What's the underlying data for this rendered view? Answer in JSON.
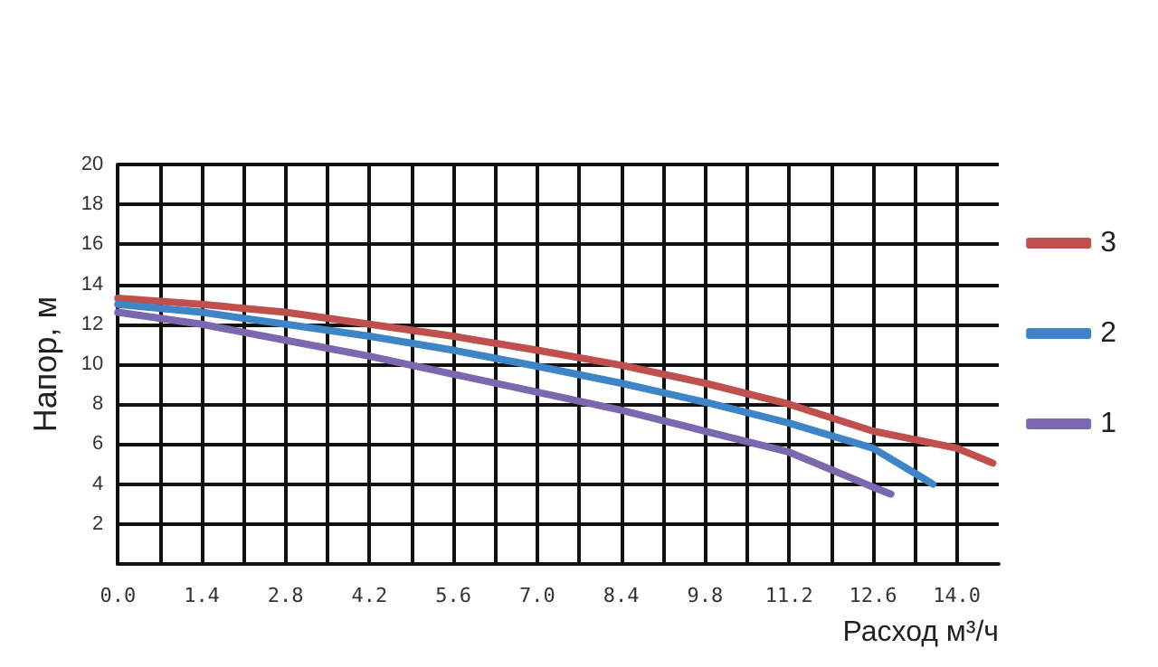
{
  "chart_data": {
    "type": "line",
    "xlabel": "Расход м³/ч",
    "ylabel": "Напор, м",
    "xlim": [
      0,
      14.7
    ],
    "xticks": [
      {
        "value": 0,
        "label": "0.0"
      },
      {
        "value": 0.7,
        "label": null
      },
      {
        "value": 1.4,
        "label": "1.4"
      },
      {
        "value": 2.1,
        "label": null
      },
      {
        "value": 2.8,
        "label": "2.8"
      },
      {
        "value": 3.5,
        "label": null
      },
      {
        "value": 4.2,
        "label": "4.2"
      },
      {
        "value": 4.9,
        "label": null
      },
      {
        "value": 5.6,
        "label": "5.6"
      },
      {
        "value": 6.3,
        "label": null
      },
      {
        "value": 7,
        "label": "7.0"
      },
      {
        "value": 7.7,
        "label": null
      },
      {
        "value": 8.4,
        "label": "8.4"
      },
      {
        "value": 9.1,
        "label": null
      },
      {
        "value": 9.8,
        "label": "9.8"
      },
      {
        "value": 10.5,
        "label": null
      },
      {
        "value": 11.2,
        "label": "11.2"
      },
      {
        "value": 11.9,
        "label": null
      },
      {
        "value": 12.6,
        "label": "12.6"
      },
      {
        "value": 13.3,
        "label": null
      },
      {
        "value": 14,
        "label": "14.0"
      }
    ],
    "ylim": [
      0,
      20
    ],
    "yticks": [
      2,
      4,
      6,
      8,
      10,
      12,
      14,
      16,
      18,
      20
    ],
    "grid": true,
    "legend": "right",
    "marker": "none",
    "line_style": "solid",
    "series": [
      {
        "name": "3",
        "color": "#c0504d",
        "x": [
          0,
          1.4,
          2.8,
          4.2,
          5.6,
          7,
          8.4,
          9.8,
          11.2,
          12.6,
          14,
          14.6
        ],
        "values": [
          13.3,
          13,
          12.6,
          12,
          11.4,
          10.7,
          9.95,
          9.05,
          8,
          6.65,
          5.8,
          5.05
        ]
      },
      {
        "name": "2",
        "color": "#3d85c6",
        "x": [
          0,
          1.4,
          2.8,
          4.2,
          5.6,
          7,
          8.4,
          9.8,
          11.2,
          12.6,
          13.6
        ],
        "values": [
          13,
          12.6,
          12,
          11.4,
          10.7,
          9.9,
          9.05,
          8.1,
          7.05,
          5.8,
          4
        ]
      },
      {
        "name": "1",
        "color": "#7b68ae",
        "x": [
          0,
          1.4,
          2.8,
          4.2,
          5.6,
          7,
          8.4,
          9.8,
          11.2,
          12.6,
          12.9
        ],
        "values": [
          12.6,
          12,
          11.2,
          10.4,
          9.5,
          8.6,
          7.7,
          6.65,
          5.6,
          3.85,
          3.5
        ]
      }
    ]
  }
}
